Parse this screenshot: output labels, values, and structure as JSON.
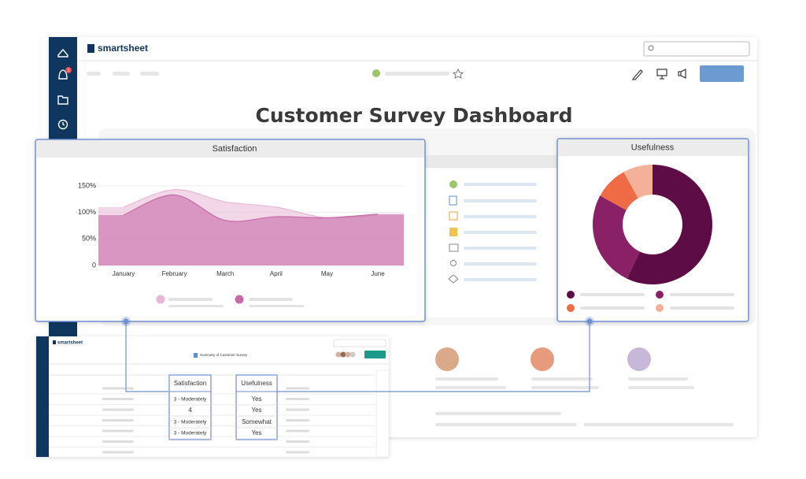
{
  "app": {
    "brand": "smartsheet",
    "notifications": 3
  },
  "dashboard": {
    "title": "Customer Survey Dashboard"
  },
  "chart_data": [
    {
      "type": "area",
      "title": "Satisfaction",
      "categories": [
        "January",
        "February",
        "March",
        "April",
        "May",
        "June"
      ],
      "series": [
        {
          "color": "#e8b6d6",
          "values": [
            110,
            143,
            120,
            110,
            90,
            95
          ]
        },
        {
          "color": "#c86aa8",
          "values": [
            95,
            133,
            85,
            92,
            90,
            97
          ]
        }
      ],
      "ylim": [
        0,
        150
      ],
      "yticks": [
        0,
        {
          "value": 50,
          "label": "50%"
        },
        {
          "value": 100,
          "label": "100%"
        },
        {
          "value": 150,
          "label": "150%"
        }
      ],
      "grid": true
    },
    {
      "type": "donut",
      "title": "Usefulness",
      "values": [
        57,
        26,
        9,
        8
      ],
      "colors": [
        "#5e0c45",
        "#8a2166",
        "#ee6b45",
        "#f5b09a"
      ]
    }
  ],
  "sheet": {
    "brand": "smartsheet",
    "title": "Summary of Customer Survey",
    "columns": [
      "Satisfaction",
      "Usefulness"
    ],
    "rows": [
      [
        "3 - Moderately",
        "Yes"
      ],
      [
        "4",
        "Yes"
      ],
      [
        "3 - Moderately",
        "Somewhat"
      ],
      [
        "3 - Moderately",
        "Yes"
      ]
    ]
  }
}
